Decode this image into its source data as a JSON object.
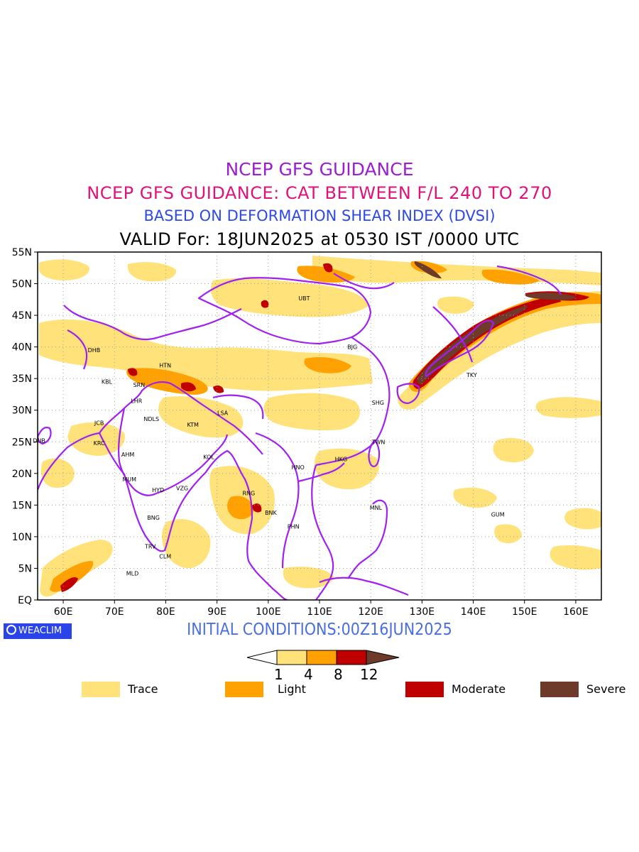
{
  "titles": {
    "line1": "NCEP GFS GUIDANCE",
    "line2": "NCEP GFS GUIDANCE: CAT BETWEEN F/L 240 TO 270",
    "line3": "BASED ON DEFORMATION SHEAR INDEX (DVSI)",
    "line4": "VALID For: 18JUN2025 at 0530 IST /0000 UTC"
  },
  "map": {
    "lon_range": [
      55,
      165
    ],
    "lat_range": [
      0,
      55
    ],
    "lat_labels": [
      "55N",
      "50N",
      "45N",
      "40N",
      "35N",
      "30N",
      "25N",
      "20N",
      "15N",
      "10N",
      "5N",
      "EQ"
    ],
    "lon_labels": [
      "60E",
      "70E",
      "80E",
      "90E",
      "100E",
      "110E",
      "120E",
      "130E",
      "140E",
      "150E",
      "160E"
    ],
    "stations": [
      {
        "code": "UBT",
        "lon": 107,
        "lat": 47.7
      },
      {
        "code": "BJG",
        "lon": 116.4,
        "lat": 40
      },
      {
        "code": "DHB",
        "lon": 66,
        "lat": 39.5
      },
      {
        "code": "HTN",
        "lon": 79.9,
        "lat": 37.1
      },
      {
        "code": "KBL",
        "lon": 68.5,
        "lat": 34.5
      },
      {
        "code": "SRN",
        "lon": 74.8,
        "lat": 34
      },
      {
        "code": "LHR",
        "lon": 74.3,
        "lat": 31.5
      },
      {
        "code": "TKY",
        "lon": 139.7,
        "lat": 35.6
      },
      {
        "code": "SHG",
        "lon": 121.4,
        "lat": 31.2
      },
      {
        "code": "LSA",
        "lon": 91.1,
        "lat": 29.6
      },
      {
        "code": "JCB",
        "lon": 67,
        "lat": 28
      },
      {
        "code": "NDLS",
        "lon": 77.2,
        "lat": 28.6
      },
      {
        "code": "KTM",
        "lon": 85.3,
        "lat": 27.7
      },
      {
        "code": "DUB",
        "lon": 55.3,
        "lat": 25.2
      },
      {
        "code": "TWN",
        "lon": 121.5,
        "lat": 25
      },
      {
        "code": "KRC",
        "lon": 67,
        "lat": 24.8
      },
      {
        "code": "AHM",
        "lon": 72.6,
        "lat": 23
      },
      {
        "code": "KOL",
        "lon": 88.4,
        "lat": 22.6
      },
      {
        "code": "HKG",
        "lon": 114.2,
        "lat": 22.3
      },
      {
        "code": "HNO",
        "lon": 105.8,
        "lat": 21
      },
      {
        "code": "MUM",
        "lon": 72.9,
        "lat": 19.1
      },
      {
        "code": "HYD",
        "lon": 78.5,
        "lat": 17.4
      },
      {
        "code": "VZG",
        "lon": 83.2,
        "lat": 17.7
      },
      {
        "code": "RNG",
        "lon": 96.2,
        "lat": 16.9
      },
      {
        "code": "MNL",
        "lon": 121,
        "lat": 14.6
      },
      {
        "code": "BNK",
        "lon": 100.5,
        "lat": 13.8
      },
      {
        "code": "GUM",
        "lon": 144.8,
        "lat": 13.5
      },
      {
        "code": "PHN",
        "lon": 104.9,
        "lat": 11.6
      },
      {
        "code": "BNG",
        "lon": 77.6,
        "lat": 13
      },
      {
        "code": "TRV",
        "lon": 77,
        "lat": 8.5
      },
      {
        "code": "CLM",
        "lon": 79.9,
        "lat": 6.9
      },
      {
        "code": "MLD",
        "lon": 73.5,
        "lat": 4.2
      }
    ]
  },
  "branding": {
    "logo_text": "WEACLIM"
  },
  "initial_conditions": "INITIAL CONDITIONS:00Z16JUN2025",
  "colorbar": {
    "ticks": [
      "1",
      "4",
      "8",
      "12"
    ],
    "colors": [
      "#ffffff",
      "#ffe27a",
      "#ffa100",
      "#c00000",
      "#6e3a2a"
    ]
  },
  "legend": [
    {
      "label": "Trace",
      "color": "#ffe27a"
    },
    {
      "label": "Light",
      "color": "#ffa100"
    },
    {
      "label": "Moderate",
      "color": "#c00000"
    },
    {
      "label": "Severe",
      "color": "#6e3a2a"
    }
  ],
  "colors": {
    "boundary": "#a020f0",
    "trace": "#ffe27a",
    "light": "#ffa100",
    "moderate": "#c00000",
    "severe": "#6e3a2a"
  }
}
